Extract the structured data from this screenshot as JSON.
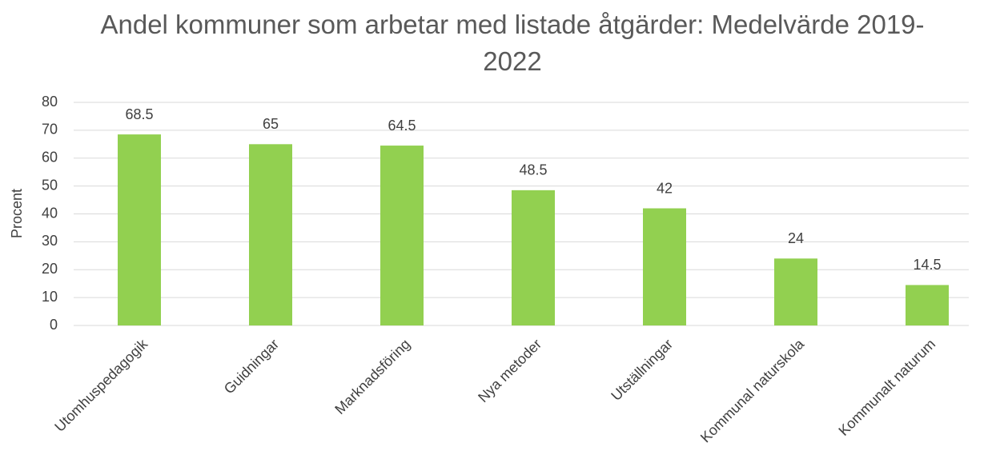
{
  "chart_data": {
    "type": "bar",
    "title": "Andel kommuner som arbetar med listade åtgärder: Medelvärde 2019-2022",
    "y_label": "Procent",
    "categories": [
      "Utomhuspedagogik",
      "Guidningar",
      "Marknadsföring",
      "Nya metoder",
      "Utställningar",
      "Kommunal naturskola",
      "Kommunalt naturum"
    ],
    "values": [
      68.5,
      65,
      64.5,
      48.5,
      42,
      24,
      14.5
    ],
    "color": "#92d050",
    "ylim": [
      0,
      80
    ],
    "yticks": [
      0,
      10,
      20,
      30,
      40,
      50,
      60,
      70,
      80
    ],
    "grid": true
  }
}
